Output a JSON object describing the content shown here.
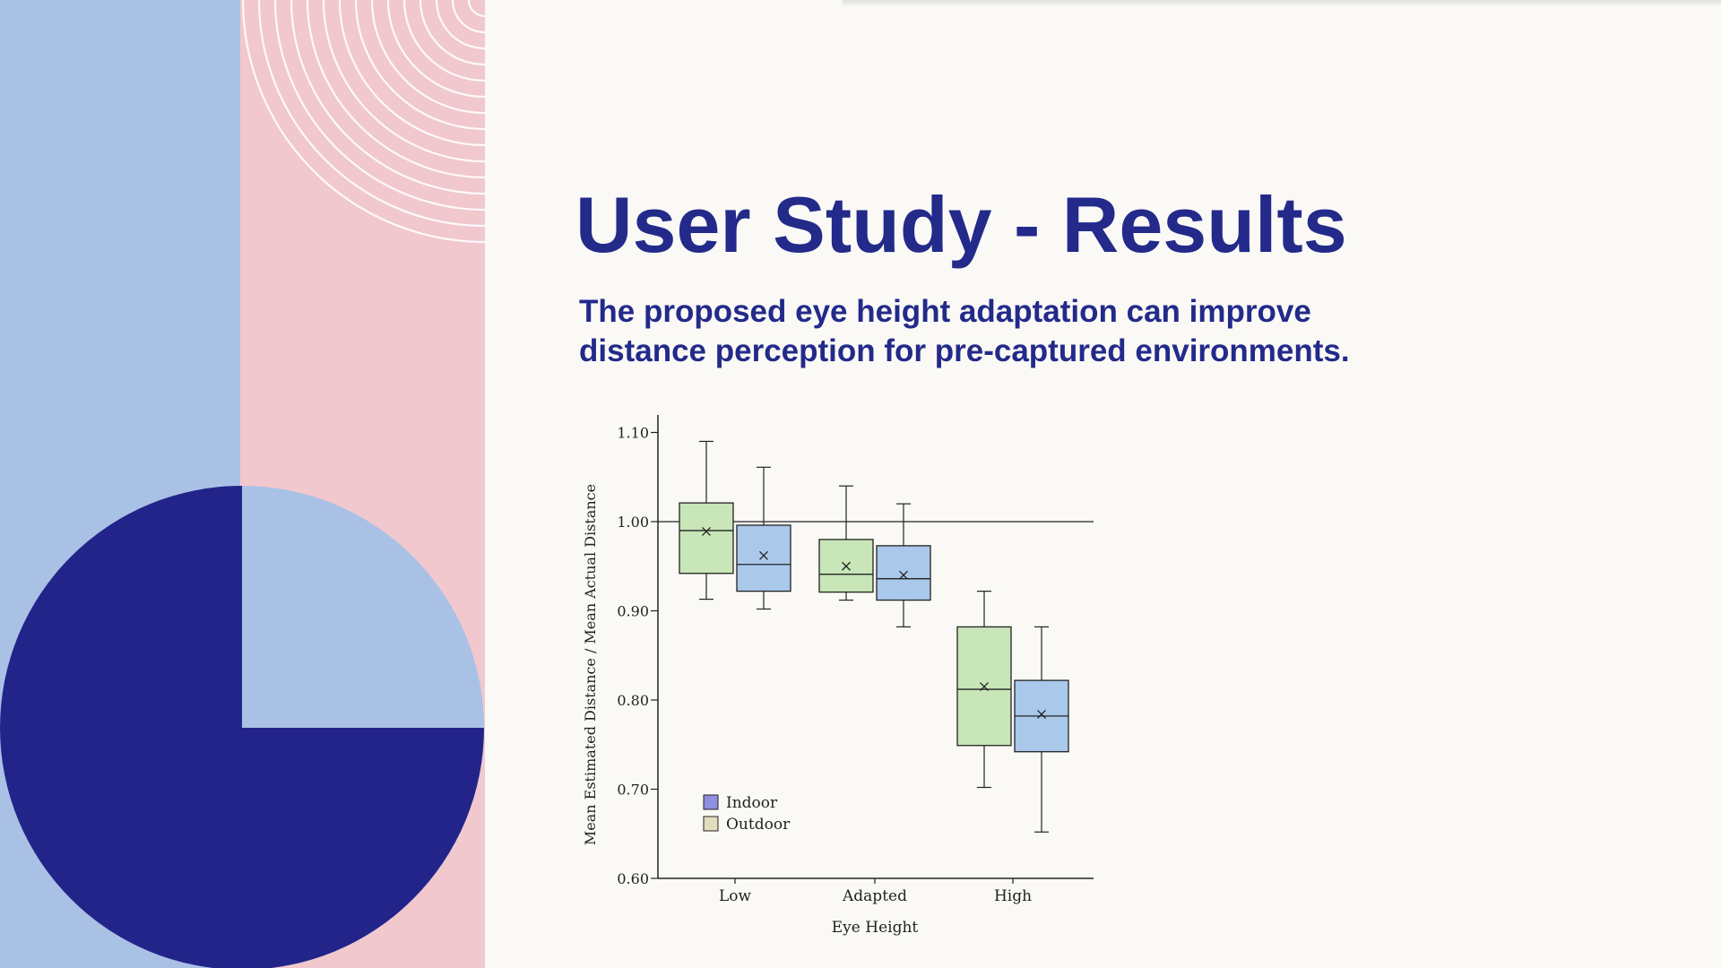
{
  "slide": {
    "title": "User Study - Results",
    "subtitle_line1": "The proposed eye height adaptation can improve",
    "subtitle_line2": "distance perception for pre-captured environments."
  },
  "colors": {
    "title": "#232a8a",
    "deco_blue": "#aac1e6",
    "deco_pink": "#f0c8ce",
    "deco_navy": "#232489",
    "outdoor_box": "#c8e6b8",
    "indoor_box": "#a9c8ea",
    "legend_indoor": "#8e8fe0",
    "legend_outdoor": "#e2ddbe"
  },
  "chart_data": {
    "type": "boxplot",
    "xlabel": "Eye Height",
    "ylabel": "Mean Estimated Distance / Mean Actual Distance",
    "ylim": [
      0.6,
      1.12
    ],
    "y_ticks": [
      "0.60",
      "0.70",
      "0.80",
      "0.90",
      "1.00",
      "1.10"
    ],
    "reference_line": 1.0,
    "categories": [
      "Low",
      "Adapted",
      "High"
    ],
    "legend": [
      "Indoor",
      "Outdoor"
    ],
    "series": [
      {
        "name": "Outdoor",
        "color": "#c8e6b8",
        "boxes": [
          {
            "min": 0.913,
            "q1": 0.942,
            "median": 0.99,
            "q3": 1.021,
            "max": 1.09,
            "mean": 0.989
          },
          {
            "min": 0.912,
            "q1": 0.921,
            "median": 0.941,
            "q3": 0.98,
            "max": 1.04,
            "mean": 0.95
          },
          {
            "min": 0.702,
            "q1": 0.749,
            "median": 0.812,
            "q3": 0.882,
            "max": 0.922,
            "mean": 0.815
          }
        ]
      },
      {
        "name": "Indoor",
        "color": "#a9c8ea",
        "boxes": [
          {
            "min": 0.902,
            "q1": 0.922,
            "median": 0.952,
            "q3": 0.996,
            "max": 1.061,
            "mean": 0.962
          },
          {
            "min": 0.882,
            "q1": 0.912,
            "median": 0.936,
            "q3": 0.973,
            "max": 1.02,
            "mean": 0.94
          },
          {
            "min": 0.652,
            "q1": 0.742,
            "median": 0.782,
            "q3": 0.822,
            "max": 0.882,
            "mean": 0.784
          }
        ]
      }
    ]
  }
}
